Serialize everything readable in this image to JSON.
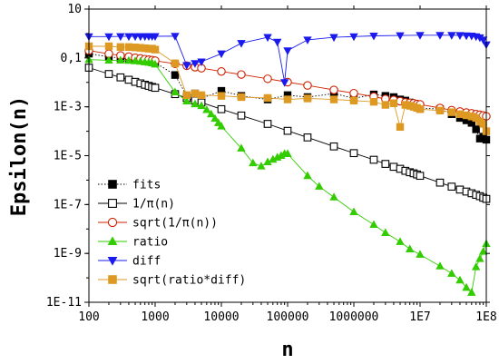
{
  "chart_data": {
    "type": "line",
    "xlabel": "n",
    "ylabel": "Epsilon(n)",
    "x_scale": "log",
    "y_scale": "log",
    "xlim": [
      100,
      100000000
    ],
    "ylim": [
      1e-11,
      10
    ],
    "x_ticks": [
      {
        "value": 100,
        "label": "100"
      },
      {
        "value": 1000,
        "label": "1000"
      },
      {
        "value": 10000,
        "label": "10000"
      },
      {
        "value": 100000,
        "label": "100000"
      },
      {
        "value": 1000000,
        "label": "1000000"
      },
      {
        "value": 10000000,
        "label": "1E7"
      },
      {
        "value": 100000000,
        "label": "1E8"
      }
    ],
    "y_ticks": [
      {
        "value": 10,
        "label": "10"
      },
      {
        "value": 0.1,
        "label": "0,1"
      },
      {
        "value": 0.001,
        "label": "1E-3"
      },
      {
        "value": 1e-05,
        "label": "1E-5"
      },
      {
        "value": 1e-07,
        "label": "1E-7"
      },
      {
        "value": 1e-09,
        "label": "1E-9"
      },
      {
        "value": 1e-11,
        "label": "1E-11"
      }
    ],
    "legend_position": "bottom-left",
    "series": [
      {
        "name": "fits",
        "color": "#000000",
        "marker": "filled-square",
        "line": "dotted",
        "x": [
          100,
          200,
          300,
          400,
          500,
          600,
          700,
          800,
          900,
          1000,
          2000,
          3000,
          4000,
          5000,
          10000,
          20000,
          50000,
          100000,
          200000,
          500000,
          1000000,
          2000000,
          3000000,
          4000000,
          5000000,
          6000000,
          7000000,
          8000000,
          9000000,
          10000000,
          20000000,
          30000000,
          40000000,
          50000000,
          60000000,
          70000000,
          80000000,
          90000000,
          100000000
        ],
        "y": [
          0.15,
          0.11,
          0.1,
          0.09,
          0.09,
          0.085,
          0.08,
          0.075,
          0.07,
          0.065,
          0.02,
          0.0028,
          0.0035,
          0.0022,
          0.0045,
          0.0028,
          0.002,
          0.003,
          0.0025,
          0.0035,
          0.0022,
          0.0032,
          0.0028,
          0.0025,
          0.002,
          0.0018,
          0.0015,
          0.0012,
          0.001,
          0.0009,
          0.0008,
          0.0005,
          0.00035,
          0.00028,
          0.00022,
          0.00012,
          5e-05,
          6e-05,
          4.5e-05
        ]
      },
      {
        "name": "1/π(n)",
        "color": "#000000",
        "marker": "open-square",
        "line": "solid",
        "x": [
          100,
          200,
          300,
          400,
          500,
          600,
          700,
          800,
          900,
          1000,
          2000,
          3000,
          4000,
          5000,
          10000,
          20000,
          50000,
          100000,
          200000,
          500000,
          1000000,
          2000000,
          3000000,
          4000000,
          5000000,
          6000000,
          7000000,
          8000000,
          9000000,
          10000000,
          20000000,
          30000000,
          40000000,
          50000000,
          60000000,
          70000000,
          80000000,
          90000000,
          100000000
        ],
        "y": [
          0.04,
          0.022,
          0.016,
          0.0128,
          0.0105,
          0.0091,
          0.008,
          0.0072,
          0.0065,
          0.006,
          0.0033,
          0.0023,
          0.0018,
          0.0015,
          0.0008,
          0.00044,
          0.0002,
          0.000104,
          5.58e-05,
          2.39e-05,
          1.27e-05,
          6.8e-06,
          4.6e-06,
          3.5e-06,
          2.9e-06,
          2.4e-06,
          2.1e-06,
          1.9e-06,
          1.7e-06,
          1.5e-06,
          7.9e-07,
          5.4e-07,
          4.1e-07,
          3.4e-07,
          2.9e-07,
          2.5e-07,
          2.2e-07,
          1.9e-07,
          1.7e-07
        ]
      },
      {
        "name": "sqrt(1/π(n))",
        "color": "#cc2200",
        "marker": "open-circle",
        "line": "solid",
        "x": [
          100,
          200,
          300,
          400,
          500,
          600,
          700,
          800,
          900,
          1000,
          2000,
          3000,
          4000,
          5000,
          10000,
          20000,
          50000,
          100000,
          200000,
          500000,
          1000000,
          2000000,
          3000000,
          4000000,
          5000000,
          6000000,
          7000000,
          8000000,
          9000000,
          10000000,
          20000000,
          30000000,
          40000000,
          50000000,
          60000000,
          70000000,
          80000000,
          90000000,
          100000000
        ],
        "y": [
          0.2,
          0.148,
          0.126,
          0.113,
          0.102,
          0.095,
          0.089,
          0.085,
          0.081,
          0.077,
          0.058,
          0.048,
          0.042,
          0.038,
          0.028,
          0.021,
          0.014,
          0.0102,
          0.0075,
          0.0049,
          0.0036,
          0.0026,
          0.0021,
          0.0019,
          0.0017,
          0.0015,
          0.00145,
          0.0014,
          0.0013,
          0.00125,
          0.00089,
          0.00073,
          0.00064,
          0.00058,
          0.00054,
          0.0005,
          0.00047,
          0.00044,
          0.00041
        ]
      },
      {
        "name": "ratio",
        "color": "#33cc00",
        "marker": "filled-triangle-up",
        "line": "solid",
        "x": [
          100,
          200,
          300,
          400,
          500,
          600,
          700,
          800,
          900,
          1000,
          2000,
          3000,
          4000,
          5000,
          6000,
          7000,
          8000,
          9000,
          10000,
          20000,
          30000,
          40000,
          50000,
          60000,
          70000,
          80000,
          90000,
          100000,
          200000,
          300000,
          500000,
          1000000,
          2000000,
          3000000,
          5000000,
          7000000,
          10000000,
          20000000,
          30000000,
          40000000,
          50000000,
          60000000,
          70000000,
          80000000,
          90000000,
          100000000
        ],
        "y": [
          0.085,
          0.08,
          0.08,
          0.078,
          0.075,
          0.072,
          0.068,
          0.065,
          0.062,
          0.055,
          0.004,
          0.0017,
          0.0013,
          0.0011,
          0.00075,
          0.0005,
          0.00033,
          0.00022,
          0.00016,
          2e-05,
          5e-06,
          3.7e-06,
          5.5e-06,
          7e-06,
          8.5e-06,
          1e-05,
          1.2e-05,
          1.2e-05,
          1.5e-06,
          5.5e-07,
          2e-07,
          5e-08,
          1.5e-08,
          7e-09,
          3e-09,
          1.5e-09,
          9e-10,
          3e-10,
          1.5e-10,
          8e-11,
          4e-11,
          2.5e-11,
          2.8e-10,
          6e-10,
          1.2e-09,
          2.5e-09
        ]
      },
      {
        "name": "diff",
        "color": "#1a1aee",
        "marker": "filled-triangle-down",
        "line": "solid",
        "x": [
          100,
          200,
          300,
          400,
          500,
          600,
          700,
          800,
          900,
          1000,
          2000,
          3000,
          4000,
          5000,
          10000,
          20000,
          50000,
          70000,
          90000,
          100000,
          200000,
          500000,
          1000000,
          2000000,
          5000000,
          10000000,
          20000000,
          30000000,
          40000000,
          50000000,
          60000000,
          70000000,
          80000000,
          90000000,
          100000000
        ],
        "y": [
          0.75,
          0.75,
          0.76,
          0.76,
          0.76,
          0.76,
          0.76,
          0.77,
          0.77,
          0.77,
          0.78,
          0.05,
          0.06,
          0.07,
          0.15,
          0.4,
          0.7,
          0.45,
          0.01,
          0.2,
          0.55,
          0.7,
          0.75,
          0.8,
          0.83,
          0.85,
          0.85,
          0.85,
          0.84,
          0.82,
          0.8,
          0.75,
          0.68,
          0.55,
          0.35
        ]
      },
      {
        "name": "sqrt(ratio*diff)",
        "color": "#dd9922",
        "marker": "filled-square",
        "line": "solid",
        "x": [
          100,
          200,
          300,
          400,
          500,
          600,
          700,
          800,
          900,
          1000,
          2000,
          3000,
          4000,
          5000,
          10000,
          20000,
          50000,
          100000,
          200000,
          500000,
          1000000,
          2000000,
          3000000,
          4000000,
          5000000,
          6000000,
          7000000,
          8000000,
          9000000,
          10000000,
          20000000,
          30000000,
          40000000,
          50000000,
          60000000,
          70000000,
          80000000,
          90000000,
          100000000
        ],
        "y": [
          0.3,
          0.3,
          0.28,
          0.28,
          0.27,
          0.26,
          0.25,
          0.24,
          0.24,
          0.22,
          0.06,
          0.003,
          0.0035,
          0.003,
          0.0028,
          0.0025,
          0.0023,
          0.002,
          0.0022,
          0.002,
          0.0018,
          0.0016,
          0.0012,
          0.0014,
          0.00015,
          0.0012,
          0.0011,
          0.001,
          0.0009,
          0.0008,
          0.0007,
          0.0006,
          0.0005,
          0.00045,
          0.0004,
          0.00035,
          0.00025,
          0.0002,
          0.0001
        ]
      }
    ]
  }
}
